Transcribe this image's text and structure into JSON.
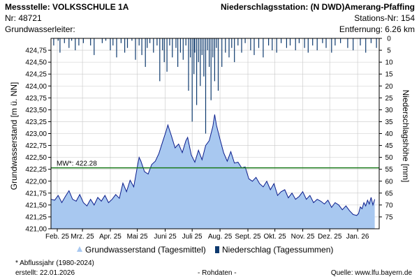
{
  "header": {
    "station_label": "Messstelle: VOLKSSCHULE 1A",
    "number_label": "Nr: 48721",
    "aquifer_label": "Grundwasserleiter:",
    "precip_station_label": "Niederschlagsstation: (N DWD)Amerang-Pfaffing",
    "precip_station_no": "Stations-Nr: 154",
    "distance_label": "Entfernung: 6.26 km"
  },
  "footer": {
    "note": "* Abflussjahr (1980-2024)",
    "created": "erstellt:  22.01.2026",
    "rawdata": "- Rohdaten -",
    "source": "Quelle:  www.lfu.bayern.de"
  },
  "legend": {
    "groundwater": "Grundwasserstand (Tagesmittel)",
    "precip": "Niederschlag (Tagessummen)"
  },
  "colors": {
    "area_fill": "#a8c8f0",
    "area_line": "#0b1d8c",
    "precip_bar": "#0e3a6e",
    "mw_line": "#1a7a1a",
    "grid": "#c8c8c8"
  },
  "chart_data": {
    "type": "area",
    "title": "",
    "ylabel": "Grundwasserstand [m ü. NN]",
    "y2label": "Niederschlagshöhe [mm]",
    "ylim": [
      421.0,
      425.0
    ],
    "y2lim": [
      0,
      80
    ],
    "y_ticks": [
      "421,00",
      "421,25",
      "421,50",
      "421,75",
      "422,00",
      "422,25",
      "422,50",
      "422,75",
      "423,00",
      "423,25",
      "423,50",
      "423,75",
      "424,00",
      "424,25",
      "424,50",
      "424,75"
    ],
    "y2_ticks": [
      "0",
      "5",
      "10",
      "15",
      "20",
      "25",
      "30",
      "35",
      "40",
      "45",
      "50",
      "55",
      "60",
      "65",
      "70",
      "75"
    ],
    "x_range_days": [
      0,
      365
    ],
    "month_ticks": [
      {
        "day": 7,
        "label": "Feb. 25"
      },
      {
        "day": 35,
        "label": "Mrz. 25"
      },
      {
        "day": 66,
        "label": "Apr. 25"
      },
      {
        "day": 96,
        "label": "Mai 25"
      },
      {
        "day": 127,
        "label": "Juni 25"
      },
      {
        "day": 157,
        "label": "Juli 25"
      },
      {
        "day": 188,
        "label": "Aug. 25"
      },
      {
        "day": 219,
        "label": "Sept. 25"
      },
      {
        "day": 249,
        "label": "Okt. 25"
      },
      {
        "day": 280,
        "label": "Nov. 25"
      },
      {
        "day": 310,
        "label": "Dez. 25"
      },
      {
        "day": 341,
        "label": "Jan. 26"
      }
    ],
    "mw": {
      "value": 422.28,
      "label": "MW*: 422.28"
    },
    "groundwater_series": {
      "name": "Grundwasserstand (Tagesmittel)",
      "days": [
        0,
        4,
        8,
        12,
        16,
        20,
        24,
        28,
        32,
        36,
        40,
        44,
        48,
        52,
        56,
        60,
        64,
        68,
        72,
        76,
        80,
        84,
        88,
        92,
        96,
        98,
        100,
        104,
        108,
        112,
        116,
        120,
        124,
        128,
        130,
        134,
        138,
        142,
        146,
        150,
        152,
        156,
        160,
        164,
        168,
        172,
        176,
        180,
        182,
        184,
        188,
        192,
        196,
        200,
        204,
        208,
        212,
        216,
        220,
        224,
        228,
        232,
        236,
        240,
        244,
        248,
        252,
        256,
        260,
        264,
        268,
        272,
        276,
        280,
        284,
        288,
        292,
        296,
        300,
        304,
        308,
        312,
        316,
        320,
        324,
        328,
        332,
        336,
        340,
        342,
        344,
        346,
        348,
        350,
        352,
        354,
        356,
        358,
        360
      ],
      "values": [
        421.62,
        421.6,
        421.7,
        421.55,
        421.68,
        421.8,
        421.62,
        421.58,
        421.72,
        421.55,
        421.48,
        421.62,
        421.5,
        421.66,
        421.58,
        421.7,
        421.55,
        421.62,
        421.72,
        421.64,
        421.96,
        421.78,
        422.02,
        421.88,
        422.3,
        422.5,
        422.42,
        422.2,
        422.15,
        422.35,
        422.42,
        422.58,
        422.82,
        423.05,
        423.18,
        422.95,
        422.7,
        422.78,
        422.6,
        422.85,
        422.92,
        422.55,
        422.4,
        422.65,
        422.45,
        422.75,
        422.85,
        423.15,
        423.4,
        423.18,
        422.88,
        422.6,
        422.42,
        422.62,
        422.38,
        422.4,
        422.28,
        422.3,
        422.05,
        422.0,
        422.08,
        421.95,
        421.88,
        422.0,
        421.82,
        421.95,
        421.7,
        421.78,
        421.82,
        421.65,
        421.75,
        421.62,
        421.68,
        421.78,
        421.62,
        421.7,
        421.55,
        421.62,
        421.58,
        421.52,
        421.6,
        421.45,
        421.55,
        421.5,
        421.4,
        421.48,
        421.38,
        421.3,
        421.28,
        421.32,
        421.46,
        421.42,
        421.55,
        421.48,
        421.6,
        421.52,
        421.66,
        421.5,
        421.62
      ]
    },
    "precip_series": {
      "name": "Niederschlag (Tagessummen)",
      "days": [
        3,
        8,
        10,
        15,
        20,
        23,
        27,
        31,
        36,
        44,
        48,
        57,
        61,
        66,
        69,
        73,
        78,
        82,
        85,
        90,
        94,
        98,
        101,
        105,
        107,
        110,
        114,
        118,
        121,
        124,
        126,
        129,
        132,
        135,
        139,
        141,
        144,
        147,
        150,
        153,
        155,
        157,
        159,
        160,
        162,
        164,
        166,
        168,
        170,
        172,
        174,
        176,
        178,
        180,
        182,
        184,
        186,
        190,
        194,
        198,
        201,
        204,
        208,
        212,
        216,
        222,
        226,
        231,
        236,
        242,
        246,
        251,
        256,
        262,
        266,
        272,
        276,
        282,
        286,
        291,
        296,
        302,
        306,
        312,
        316,
        322,
        330,
        336,
        344,
        350,
        356,
        362
      ],
      "values": [
        3,
        1,
        6,
        2,
        4,
        1,
        5,
        3,
        2,
        3,
        7,
        2,
        1,
        5,
        3,
        8,
        2,
        6,
        4,
        1,
        9,
        3,
        7,
        12,
        4,
        2,
        6,
        3,
        18,
        5,
        10,
        14,
        3,
        8,
        4,
        12,
        6,
        9,
        3,
        22,
        8,
        35,
        15,
        6,
        28,
        10,
        20,
        7,
        16,
        40,
        5,
        12,
        26,
        8,
        18,
        4,
        22,
        12,
        6,
        8,
        4,
        10,
        3,
        6,
        2,
        5,
        7,
        4,
        8,
        3,
        5,
        6,
        2,
        4,
        3,
        5,
        2,
        4,
        6,
        3,
        5,
        2,
        4,
        6,
        3,
        2,
        4,
        5,
        3,
        6,
        2,
        4
      ]
    }
  }
}
